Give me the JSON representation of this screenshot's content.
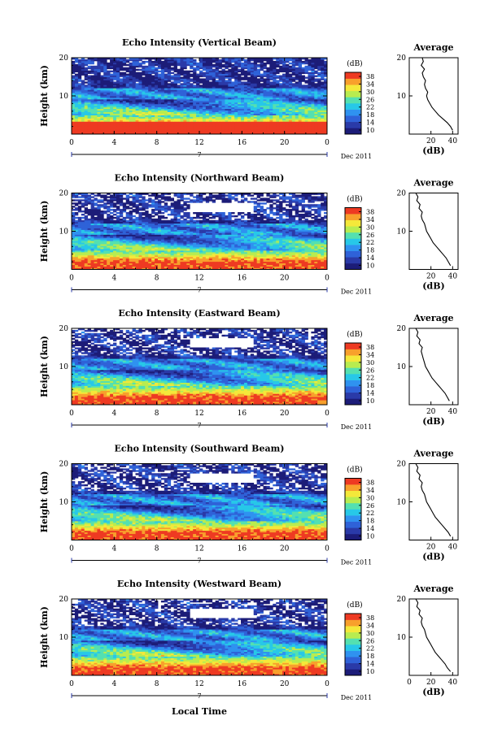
{
  "figure": {
    "xlabel": "Local Time",
    "date_label": "Dec 2011",
    "day_marker": "7",
    "ylabel": "Height (km)",
    "cb_unit": "(dB)",
    "cb_ticks": [
      "10",
      "14",
      "18",
      "22",
      "26",
      "30",
      "34",
      "38"
    ],
    "avg_title": "Average",
    "avg_xlabel": "(dB)",
    "x_ticks": [
      "0",
      "4",
      "8",
      "12",
      "16",
      "20",
      "0"
    ],
    "y_ticks": [
      "10",
      "20"
    ],
    "colormap": [
      "#1c1c78",
      "#2a3aa8",
      "#2f62d8",
      "#2f92f0",
      "#27c8e8",
      "#54e0b0",
      "#b8ec50",
      "#f4e83a",
      "#f8a02c",
      "#ee3a22"
    ]
  },
  "chart_data": [
    {
      "type": "heatmap",
      "title": "Echo Intensity (Vertical Beam)",
      "x_range": [
        0,
        24
      ],
      "y_range": [
        0,
        20
      ],
      "c_range": [
        10,
        38
      ],
      "avg_x_ticks": [
        "20",
        "40"
      ],
      "avg_profile": {
        "height": [
          1,
          2,
          3,
          4,
          5,
          6,
          7,
          8,
          9,
          10,
          11,
          12,
          13,
          14,
          15,
          16,
          17,
          18,
          19,
          20
        ],
        "db": [
          40,
          38,
          35,
          31,
          27,
          24,
          21,
          19,
          17,
          16,
          17,
          15,
          14,
          15,
          13,
          12,
          14,
          11,
          13,
          12
        ]
      }
    },
    {
      "type": "heatmap",
      "title": "Echo Intensity (Northward Beam)",
      "x_range": [
        0,
        24
      ],
      "y_range": [
        0,
        20
      ],
      "c_range": [
        10,
        38
      ],
      "avg_x_ticks": [
        "20",
        "40"
      ],
      "avg_profile": {
        "height": [
          1,
          2,
          3,
          4,
          5,
          6,
          7,
          8,
          9,
          10,
          11,
          12,
          13,
          14,
          15,
          16,
          17,
          18,
          19,
          20
        ],
        "db": [
          38,
          36,
          34,
          31,
          28,
          25,
          22,
          20,
          18,
          16,
          15,
          14,
          12,
          11,
          12,
          9,
          10,
          7,
          8,
          6
        ]
      }
    },
    {
      "type": "heatmap",
      "title": "Echo Intensity (Eastward Beam)",
      "x_range": [
        0,
        24
      ],
      "y_range": [
        0,
        20
      ],
      "c_range": [
        10,
        38
      ],
      "avg_x_ticks": [
        "20",
        "40"
      ],
      "avg_profile": {
        "height": [
          1,
          2,
          3,
          4,
          5,
          6,
          7,
          8,
          9,
          10,
          11,
          12,
          13,
          14,
          15,
          16,
          17,
          18,
          19,
          20
        ],
        "db": [
          37,
          35,
          33,
          30,
          27,
          24,
          21,
          19,
          17,
          15,
          14,
          13,
          12,
          11,
          12,
          9,
          10,
          7,
          8,
          6
        ]
      }
    },
    {
      "type": "heatmap",
      "title": "Echo Intensity (Southward Beam)",
      "x_range": [
        0,
        24
      ],
      "y_range": [
        0,
        20
      ],
      "c_range": [
        10,
        38
      ],
      "avg_x_ticks": [
        "20",
        "40"
      ],
      "avg_profile": {
        "height": [
          1,
          2,
          3,
          4,
          5,
          6,
          7,
          8,
          9,
          10,
          11,
          12,
          13,
          14,
          15,
          16,
          17,
          18,
          19,
          20
        ],
        "db": [
          38,
          36,
          33,
          30,
          27,
          24,
          22,
          20,
          18,
          16,
          15,
          14,
          12,
          11,
          12,
          9,
          10,
          7,
          8,
          6
        ]
      }
    },
    {
      "type": "heatmap",
      "title": "Echo Intensity (Westward Beam)",
      "x_range": [
        0,
        24
      ],
      "y_range": [
        0,
        20
      ],
      "c_range": [
        10,
        38
      ],
      "avg_x_ticks": [
        "0",
        "20",
        "40"
      ],
      "avg_profile": {
        "height": [
          1,
          2,
          3,
          4,
          5,
          6,
          7,
          8,
          9,
          10,
          11,
          12,
          13,
          14,
          15,
          16,
          17,
          18,
          19,
          20
        ],
        "db": [
          38,
          35,
          33,
          30,
          27,
          24,
          22,
          20,
          18,
          16,
          15,
          14,
          12,
          11,
          12,
          9,
          10,
          7,
          8,
          6
        ]
      }
    }
  ]
}
